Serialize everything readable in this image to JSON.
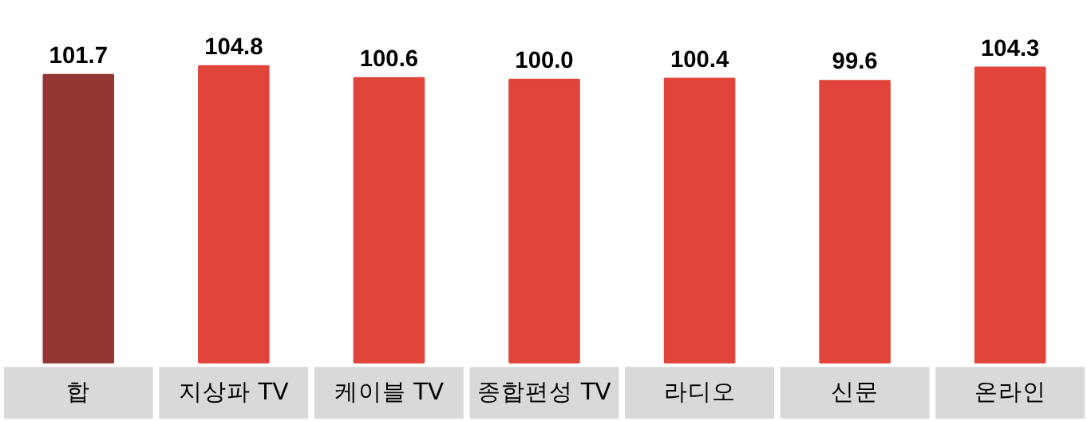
{
  "chart_data": {
    "type": "bar",
    "categories": [
      "합",
      "지상파 TV",
      "케이블 TV",
      "종합편성 TV",
      "라디오",
      "신문",
      "온라인"
    ],
    "values": [
      101.7,
      104.8,
      100.6,
      100.0,
      100.4,
      99.6,
      104.3
    ],
    "colors": [
      "#943634",
      "#e0443a",
      "#e0443a",
      "#e0443a",
      "#e0443a",
      "#e0443a",
      "#e0443a"
    ],
    "value_labels": [
      "101.7",
      "104.8",
      "100.6",
      "100.0",
      "100.4",
      "99.6",
      "104.3"
    ],
    "grid": false
  }
}
